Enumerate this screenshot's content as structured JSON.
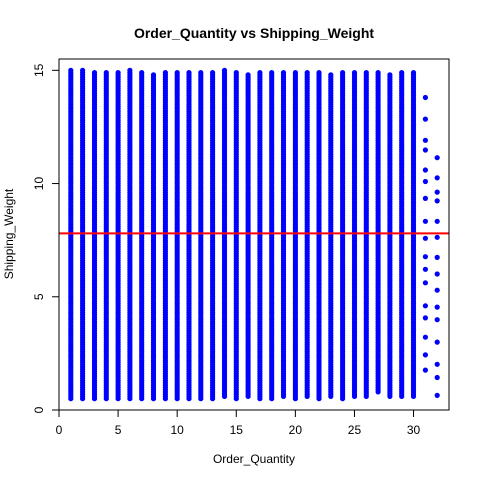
{
  "chart_data": {
    "type": "scatter",
    "title": "Order_Quantity vs Shipping_Weight",
    "xlabel": "Order_Quantity",
    "ylabel": "Shipping_Weight",
    "xlim": [
      0,
      33
    ],
    "ylim": [
      0,
      15.5
    ],
    "x_ticks": [
      0,
      5,
      10,
      15,
      20,
      25,
      30
    ],
    "y_ticks": [
      0,
      5,
      10,
      15
    ],
    "point_color": "#0000FF",
    "reference_line": {
      "y": 7.8,
      "color": "#FF0000"
    },
    "grid": false,
    "columns": [
      {
        "x": 1,
        "y_min": 0.5,
        "y_max": 15.0
      },
      {
        "x": 2,
        "y_min": 0.5,
        "y_max": 15.0
      },
      {
        "x": 3,
        "y_min": 0.5,
        "y_max": 14.9
      },
      {
        "x": 4,
        "y_min": 0.5,
        "y_max": 14.9
      },
      {
        "x": 5,
        "y_min": 0.5,
        "y_max": 14.9
      },
      {
        "x": 6,
        "y_min": 0.5,
        "y_max": 15.0
      },
      {
        "x": 7,
        "y_min": 0.5,
        "y_max": 14.9
      },
      {
        "x": 8,
        "y_min": 0.5,
        "y_max": 14.8
      },
      {
        "x": 9,
        "y_min": 0.5,
        "y_max": 14.9
      },
      {
        "x": 10,
        "y_min": 0.5,
        "y_max": 14.9
      },
      {
        "x": 11,
        "y_min": 0.5,
        "y_max": 14.9
      },
      {
        "x": 12,
        "y_min": 0.5,
        "y_max": 14.9
      },
      {
        "x": 13,
        "y_min": 0.5,
        "y_max": 14.9
      },
      {
        "x": 14,
        "y_min": 0.6,
        "y_max": 15.0
      },
      {
        "x": 15,
        "y_min": 0.5,
        "y_max": 14.9
      },
      {
        "x": 16,
        "y_min": 0.6,
        "y_max": 14.8
      },
      {
        "x": 17,
        "y_min": 0.5,
        "y_max": 14.9
      },
      {
        "x": 18,
        "y_min": 0.5,
        "y_max": 14.9
      },
      {
        "x": 19,
        "y_min": 0.6,
        "y_max": 14.9
      },
      {
        "x": 20,
        "y_min": 0.5,
        "y_max": 14.9
      },
      {
        "x": 21,
        "y_min": 0.6,
        "y_max": 14.9
      },
      {
        "x": 22,
        "y_min": 0.5,
        "y_max": 14.9
      },
      {
        "x": 23,
        "y_min": 0.6,
        "y_max": 14.8
      },
      {
        "x": 24,
        "y_min": 0.5,
        "y_max": 14.9
      },
      {
        "x": 25,
        "y_min": 0.6,
        "y_max": 14.9
      },
      {
        "x": 26,
        "y_min": 0.6,
        "y_max": 14.9
      },
      {
        "x": 27,
        "y_min": 0.8,
        "y_max": 14.9
      },
      {
        "x": 28,
        "y_min": 0.6,
        "y_max": 14.8
      },
      {
        "x": 29,
        "y_min": 0.6,
        "y_max": 14.9
      },
      {
        "x": 30,
        "y_min": 0.6,
        "y_max": 14.9
      },
      {
        "x": 31,
        "y_min": 1.4,
        "y_max": 13.8
      },
      {
        "x": 32,
        "y_min": 0.5,
        "y_max": 11.7
      }
    ]
  }
}
